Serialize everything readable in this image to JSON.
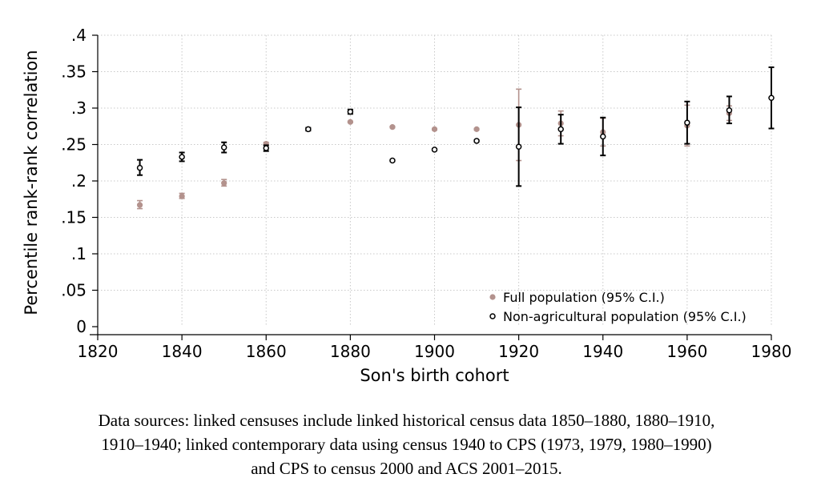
{
  "chart_data": {
    "type": "scatter",
    "xlabel": "Son's birth cohort",
    "ylabel": "Percentile rank-rank correlation",
    "xlim": [
      1820,
      1980
    ],
    "ylim": [
      0,
      0.4
    ],
    "x_ticks": [
      1820,
      1840,
      1860,
      1880,
      1900,
      1920,
      1940,
      1960,
      1980
    ],
    "x_tick_labels": [
      "1820",
      "1840",
      "1860",
      "1880",
      "1900",
      "1920",
      "1940",
      "1960",
      "1980"
    ],
    "y_ticks": [
      0,
      0.05,
      0.1,
      0.15,
      0.2,
      0.25,
      0.3,
      0.35,
      0.4
    ],
    "y_tick_labels": [
      "0",
      ".05",
      ".1",
      ".15",
      ".2",
      ".25",
      ".3",
      ".35",
      ".4"
    ],
    "grid": true,
    "legend_position": "bottom-right",
    "series": [
      {
        "name": "Full population (95% C.I.)",
        "color": "#b3928d",
        "marker": "filled-circle",
        "points": [
          {
            "x": 1830,
            "y": 0.167,
            "lo": 0.162,
            "hi": 0.173
          },
          {
            "x": 1840,
            "y": 0.179,
            "lo": 0.176,
            "hi": 0.183
          },
          {
            "x": 1850,
            "y": 0.197,
            "lo": 0.193,
            "hi": 0.202
          },
          {
            "x": 1860,
            "y": 0.251,
            "lo": 0.249,
            "hi": 0.253
          },
          {
            "x": 1870,
            "y": 0.271,
            "lo": 0.27,
            "hi": 0.272
          },
          {
            "x": 1880,
            "y": 0.281,
            "lo": 0.28,
            "hi": 0.282
          },
          {
            "x": 1890,
            "y": 0.274,
            "lo": 0.273,
            "hi": 0.275
          },
          {
            "x": 1900,
            "y": 0.271,
            "lo": 0.27,
            "hi": 0.272
          },
          {
            "x": 1910,
            "y": 0.271,
            "lo": 0.27,
            "hi": 0.272
          },
          {
            "x": 1920,
            "y": 0.277,
            "lo": 0.228,
            "hi": 0.326
          },
          {
            "x": 1930,
            "y": 0.279,
            "lo": 0.262,
            "hi": 0.296
          },
          {
            "x": 1940,
            "y": 0.267,
            "lo": 0.248,
            "hi": 0.286
          },
          {
            "x": 1960,
            "y": 0.276,
            "lo": 0.248,
            "hi": 0.304
          },
          {
            "x": 1970,
            "y": 0.293,
            "lo": 0.283,
            "hi": 0.303
          }
        ]
      },
      {
        "name": "Non-agricultural population (95% C.I.)",
        "color": "#000000",
        "marker": "hollow-circle",
        "points": [
          {
            "x": 1830,
            "y": 0.218,
            "lo": 0.208,
            "hi": 0.229
          },
          {
            "x": 1840,
            "y": 0.233,
            "lo": 0.227,
            "hi": 0.239
          },
          {
            "x": 1850,
            "y": 0.246,
            "lo": 0.239,
            "hi": 0.253
          },
          {
            "x": 1860,
            "y": 0.245,
            "lo": 0.241,
            "hi": 0.249
          },
          {
            "x": 1870,
            "y": 0.271,
            "lo": 0.269,
            "hi": 0.273
          },
          {
            "x": 1880,
            "y": 0.295,
            "lo": 0.292,
            "hi": 0.298
          },
          {
            "x": 1890,
            "y": 0.228,
            "lo": 0.227,
            "hi": 0.229
          },
          {
            "x": 1900,
            "y": 0.243,
            "lo": 0.242,
            "hi": 0.244
          },
          {
            "x": 1910,
            "y": 0.255,
            "lo": 0.254,
            "hi": 0.256
          },
          {
            "x": 1920,
            "y": 0.247,
            "lo": 0.193,
            "hi": 0.301
          },
          {
            "x": 1930,
            "y": 0.271,
            "lo": 0.251,
            "hi": 0.291
          },
          {
            "x": 1940,
            "y": 0.261,
            "lo": 0.235,
            "hi": 0.287
          },
          {
            "x": 1960,
            "y": 0.28,
            "lo": 0.251,
            "hi": 0.309
          },
          {
            "x": 1970,
            "y": 0.297,
            "lo": 0.279,
            "hi": 0.316
          },
          {
            "x": 1980,
            "y": 0.314,
            "lo": 0.272,
            "hi": 0.356
          }
        ]
      }
    ]
  },
  "caption": {
    "lines": [
      "Data sources: linked censuses include linked historical census data 1850–1880, 1880–1910,",
      "1910–1940; linked contemporary data using census 1940 to CPS (1973, 1979, 1980–1990)",
      "and CPS to census 2000 and ACS 2001–2015."
    ]
  }
}
